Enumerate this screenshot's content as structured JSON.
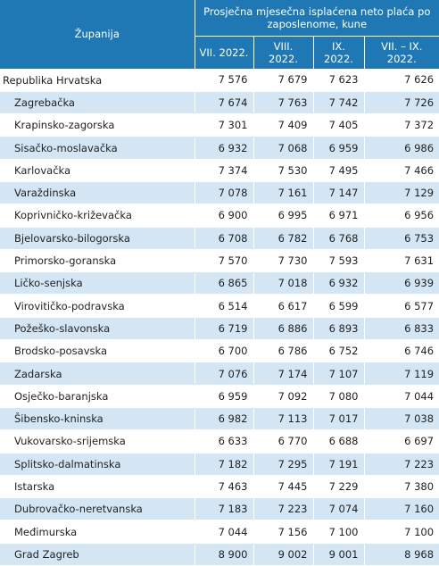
{
  "header": {
    "region": "Županija",
    "group": "Prosječna mjesečna isplaćena neto plaća po zaposlenome, kune",
    "columns": [
      "VII. 2022.",
      "VIII. 2022.",
      "IX. 2022.",
      "VII. – IX. 2022."
    ]
  },
  "rows": [
    {
      "name": "Republika Hrvatska",
      "v": [
        "7 576",
        "7 679",
        "7 623",
        "7 626"
      ]
    },
    {
      "name": "Zagrebačka",
      "v": [
        "7 674",
        "7 763",
        "7 742",
        "7 726"
      ]
    },
    {
      "name": "Krapinsko-zagorska",
      "v": [
        "7 301",
        "7 409",
        "7 405",
        "7 372"
      ]
    },
    {
      "name": "Sisačko-moslavačka",
      "v": [
        "6 932",
        "7 068",
        "6 959",
        "6 986"
      ]
    },
    {
      "name": "Karlovačka",
      "v": [
        "7 374",
        "7 530",
        "7 495",
        "7 466"
      ]
    },
    {
      "name": "Varaždinska",
      "v": [
        "7 078",
        "7 161",
        "7 147",
        "7 129"
      ]
    },
    {
      "name": "Koprivničko-križevačka",
      "v": [
        "6 900",
        "6 995",
        "6 971",
        "6 956"
      ]
    },
    {
      "name": "Bjelovarsko-bilogorska",
      "v": [
        "6 708",
        "6 782",
        "6 768",
        "6 753"
      ]
    },
    {
      "name": "Primorsko-goranska",
      "v": [
        "7 570",
        "7 730",
        "7 593",
        "7 631"
      ]
    },
    {
      "name": "Ličko-senjska",
      "v": [
        "6 865",
        "7 018",
        "6 932",
        "6 939"
      ]
    },
    {
      "name": "Virovitičko-podravska",
      "v": [
        "6 514",
        "6 617",
        "6 599",
        "6 577"
      ]
    },
    {
      "name": "Požeško-slavonska",
      "v": [
        "6 719",
        "6 886",
        "6 893",
        "6 833"
      ]
    },
    {
      "name": "Brodsko-posavska",
      "v": [
        "6 700",
        "6 786",
        "6 752",
        "6 746"
      ]
    },
    {
      "name": "Zadarska",
      "v": [
        "7 076",
        "7 174",
        "7 107",
        "7 119"
      ]
    },
    {
      "name": "Osječko-baranjska",
      "v": [
        "6 959",
        "7 092",
        "7 080",
        "7 044"
      ]
    },
    {
      "name": "Šibensko-kninska",
      "v": [
        "6 982",
        "7 113",
        "7 017",
        "7 038"
      ]
    },
    {
      "name": "Vukovarsko-srijemska",
      "v": [
        "6 633",
        "6 770",
        "6 688",
        "6 697"
      ]
    },
    {
      "name": "Splitsko-dalmatinska",
      "v": [
        "7 182",
        "7 295",
        "7 191",
        "7 223"
      ]
    },
    {
      "name": "Istarska",
      "v": [
        "7 463",
        "7 445",
        "7 229",
        "7 380"
      ]
    },
    {
      "name": "Dubrovačko-neretvanska",
      "v": [
        "7 183",
        "7 223",
        "7 074",
        "7 160"
      ]
    },
    {
      "name": "Međimurska",
      "v": [
        "7 044",
        "7 156",
        "7 100",
        "7 100"
      ]
    },
    {
      "name": "Grad Zagreb",
      "v": [
        "8 900",
        "9 002",
        "9 001",
        "8 968"
      ]
    }
  ]
}
